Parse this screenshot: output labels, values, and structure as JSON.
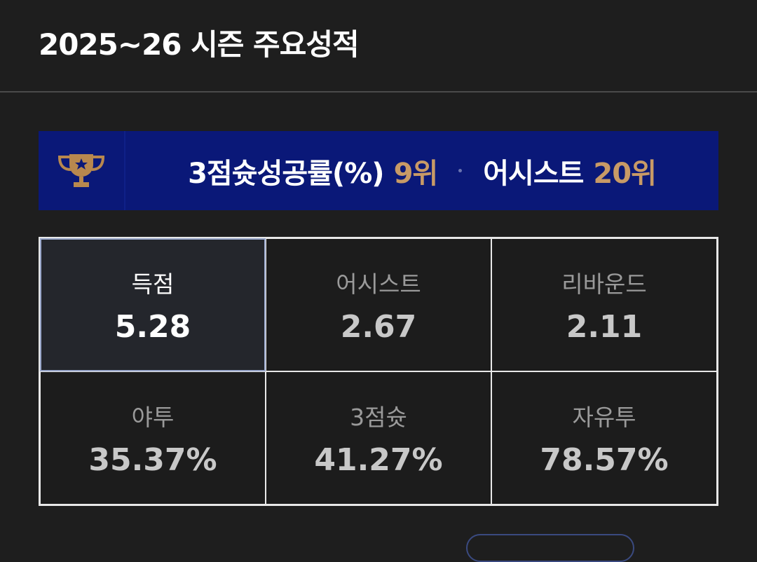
{
  "header": {
    "title": "2025~26 시즌 주요성적"
  },
  "rankings": [
    {
      "name": "3점슛성공률(%)",
      "rank": "9위"
    },
    {
      "name": "어시스트",
      "rank": "20위"
    }
  ],
  "stats": [
    {
      "label": "득점",
      "value": "5.28",
      "active": true
    },
    {
      "label": "어시스트",
      "value": "2.67"
    },
    {
      "label": "리바운드",
      "value": "2.11"
    },
    {
      "label": "야투",
      "value": "35.37%"
    },
    {
      "label": "3점슛",
      "value": "41.27%"
    },
    {
      "label": "자유투",
      "value": "78.57%"
    }
  ]
}
